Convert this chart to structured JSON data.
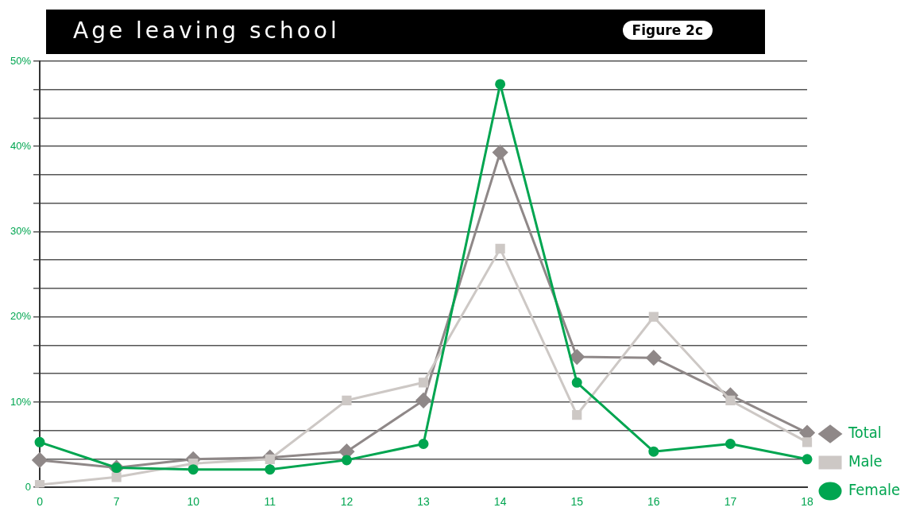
{
  "chart_data": {
    "type": "line",
    "title": "Age leaving school",
    "annotations": [
      "Figure 2c"
    ],
    "categories": [
      "0",
      "7",
      "10",
      "11",
      "12",
      "13",
      "14",
      "15",
      "16",
      "17",
      "18"
    ],
    "series": [
      {
        "name": "Total",
        "color": "#8f8888",
        "marker": "diamond",
        "values": [
          3.2,
          2.3,
          3.3,
          3.5,
          4.2,
          10.2,
          39.3,
          15.3,
          15.2,
          10.8,
          6.4
        ]
      },
      {
        "name": "Male",
        "color": "#cdc8c5",
        "marker": "square",
        "values": [
          0.3,
          1.2,
          2.8,
          3.3,
          10.2,
          12.3,
          28.0,
          8.5,
          20.0,
          10.2,
          5.3
        ]
      },
      {
        "name": "Female",
        "color": "#00a550",
        "marker": "circle",
        "values": [
          5.3,
          2.3,
          2.1,
          2.1,
          3.2,
          5.1,
          47.3,
          12.3,
          4.2,
          5.1,
          3.3
        ]
      }
    ],
    "ylim": [
      0,
      50
    ],
    "yticks": [
      {
        "value": 0,
        "label": "0"
      },
      {
        "value": 3.33,
        "label": null
      },
      {
        "value": 6.67,
        "label": null
      },
      {
        "value": 10,
        "label": "10%"
      },
      {
        "value": 13.33,
        "label": null
      },
      {
        "value": 16.67,
        "label": null
      },
      {
        "value": 20,
        "label": "20%"
      },
      {
        "value": 23.33,
        "label": null
      },
      {
        "value": 26.67,
        "label": null
      },
      {
        "value": 30,
        "label": "30%"
      },
      {
        "value": 33.33,
        "label": null
      },
      {
        "value": 36.67,
        "label": null
      },
      {
        "value": 40,
        "label": "40%"
      },
      {
        "value": 43.33,
        "label": null
      },
      {
        "value": 46.67,
        "label": null
      },
      {
        "value": 50,
        "label": "50%"
      }
    ],
    "grid": "y",
    "legend": "bottom right"
  }
}
